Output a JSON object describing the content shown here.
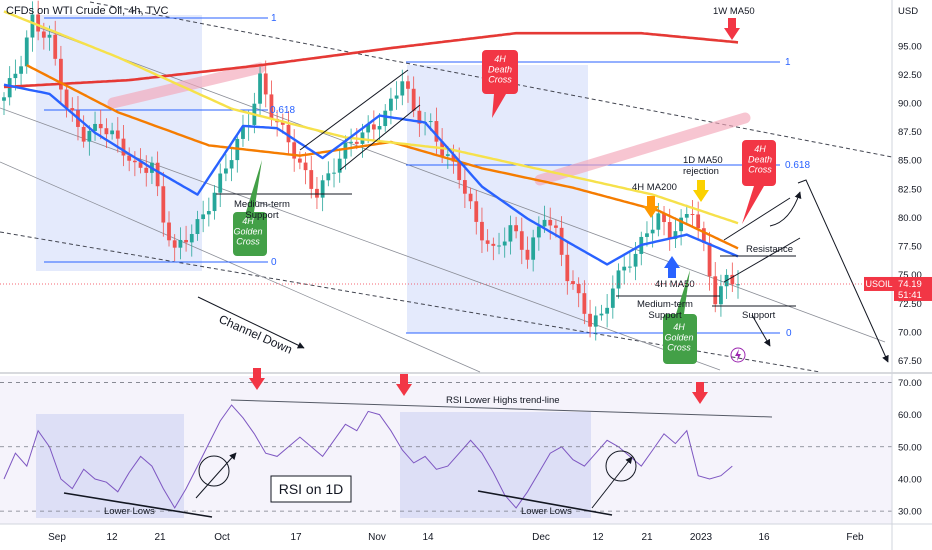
{
  "header": {
    "title": "CFDs on WTI Crude Oil, 4h, TVC",
    "currency": "USD"
  },
  "price_tag": {
    "symbol": "USOIL",
    "price": "74.19",
    "countdown": "51:41",
    "color": "#f23645"
  },
  "colors": {
    "ma_red": "#e53935",
    "ma_orange": "#f57c00",
    "ma_yellow": "#f6e14b",
    "ma_blue": "#2962ff",
    "up": "#26a69a",
    "down": "#ef5350",
    "box": "#dbe3fb",
    "rsi_bg": "#ede9f7"
  },
  "chart_data": [
    {
      "type": "candlestick",
      "title": "CFDs on WTI Crude Oil, 4h, TVC",
      "x_tick_labels": [
        "Sep",
        "12",
        "21",
        "Oct",
        "17",
        "Nov",
        "14",
        "Dec",
        "12",
        "21",
        "2023",
        "16",
        "Feb"
      ],
      "y_tick_labels": [
        "95.00",
        "92.50",
        "90.00",
        "87.50",
        "85.00",
        "82.50",
        "80.00",
        "77.50",
        "75.00",
        "72.50",
        "70.00",
        "67.50"
      ],
      "ylim": [
        66.5,
        99.0
      ],
      "last_price": 74.19,
      "close_series": [
        {
          "x": 0,
          "y": 90.2
        },
        {
          "x": 3,
          "y": 93.8
        },
        {
          "x": 5,
          "y": 97.6
        },
        {
          "x": 8,
          "y": 95.4
        },
        {
          "x": 11,
          "y": 89.4
        },
        {
          "x": 14,
          "y": 87.4
        },
        {
          "x": 17,
          "y": 88.2
        },
        {
          "x": 20,
          "y": 86.3
        },
        {
          "x": 23,
          "y": 84.4
        },
        {
          "x": 26,
          "y": 84.9
        },
        {
          "x": 28,
          "y": 79.7
        },
        {
          "x": 30,
          "y": 76.7
        },
        {
          "x": 32,
          "y": 78.2
        },
        {
          "x": 34,
          "y": 79.6
        },
        {
          "x": 37,
          "y": 82.2
        },
        {
          "x": 40,
          "y": 85.2
        },
        {
          "x": 43,
          "y": 88.6
        },
        {
          "x": 45,
          "y": 92.4
        },
        {
          "x": 47,
          "y": 89.2
        },
        {
          "x": 49,
          "y": 87.3
        },
        {
          "x": 52,
          "y": 84.5
        },
        {
          "x": 55,
          "y": 82.4
        },
        {
          "x": 58,
          "y": 84.3
        },
        {
          "x": 61,
          "y": 86.4
        },
        {
          "x": 64,
          "y": 87.9
        },
        {
          "x": 67,
          "y": 89.0
        },
        {
          "x": 70,
          "y": 91.8
        },
        {
          "x": 72,
          "y": 89.2
        },
        {
          "x": 75,
          "y": 88.2
        },
        {
          "x": 77,
          "y": 85.9
        },
        {
          "x": 80,
          "y": 83.4
        },
        {
          "x": 83,
          "y": 79.6
        },
        {
          "x": 86,
          "y": 77.2
        },
        {
          "x": 89,
          "y": 78.8
        },
        {
          "x": 92,
          "y": 76.6
        },
        {
          "x": 95,
          "y": 80.6
        },
        {
          "x": 97,
          "y": 78.6
        },
        {
          "x": 99,
          "y": 74.7
        },
        {
          "x": 101,
          "y": 72.7
        },
        {
          "x": 103,
          "y": 71.0
        },
        {
          "x": 105,
          "y": 71.6
        },
        {
          "x": 107,
          "y": 74.0
        },
        {
          "x": 109,
          "y": 75.4
        },
        {
          "x": 111,
          "y": 76.5
        },
        {
          "x": 113,
          "y": 79.0
        },
        {
          "x": 115,
          "y": 80.3
        },
        {
          "x": 117,
          "y": 78.6
        },
        {
          "x": 119,
          "y": 79.2
        },
        {
          "x": 121,
          "y": 80.6
        },
        {
          "x": 123,
          "y": 77.4
        },
        {
          "x": 125,
          "y": 73.2
        },
        {
          "x": 127,
          "y": 74.6
        },
        {
          "x": 129,
          "y": 74.2
        }
      ],
      "moving_averages": [
        {
          "name": "1W MA50",
          "points": [
            {
              "x": 0,
              "y": 91.4
            },
            {
              "x": 22,
              "y": 92.0
            },
            {
              "x": 45,
              "y": 93.3
            },
            {
              "x": 68,
              "y": 94.8
            },
            {
              "x": 90,
              "y": 96.1
            },
            {
              "x": 112,
              "y": 96.1
            },
            {
              "x": 129,
              "y": 95.3
            }
          ]
        },
        {
          "name": "4H MA200",
          "points": [
            {
              "x": 4,
              "y": 93.3
            },
            {
              "x": 20,
              "y": 89.2
            },
            {
              "x": 36,
              "y": 86.3
            },
            {
              "x": 52,
              "y": 85.4
            },
            {
              "x": 68,
              "y": 86.6
            },
            {
              "x": 84,
              "y": 84.3
            },
            {
              "x": 100,
              "y": 82.6
            },
            {
              "x": 115,
              "y": 80.6
            },
            {
              "x": 129,
              "y": 77.3
            }
          ]
        },
        {
          "name": "1D MA50",
          "points": [
            {
              "x": 0,
              "y": 98.0
            },
            {
              "x": 20,
              "y": 94.0
            },
            {
              "x": 40,
              "y": 89.5
            },
            {
              "x": 60,
              "y": 87.0
            },
            {
              "x": 78,
              "y": 86.0
            },
            {
              "x": 96,
              "y": 84.0
            },
            {
              "x": 114,
              "y": 82.0
            },
            {
              "x": 129,
              "y": 79.5
            }
          ]
        },
        {
          "name": "4H MA50",
          "points": [
            {
              "x": 0,
              "y": 91.6
            },
            {
              "x": 8,
              "y": 90.8
            },
            {
              "x": 16,
              "y": 87.4
            },
            {
              "x": 26,
              "y": 84.3
            },
            {
              "x": 34,
              "y": 82.0
            },
            {
              "x": 42,
              "y": 88.0
            },
            {
              "x": 48,
              "y": 87.8
            },
            {
              "x": 56,
              "y": 85.2
            },
            {
              "x": 66,
              "y": 88.9
            },
            {
              "x": 74,
              "y": 88.3
            },
            {
              "x": 84,
              "y": 82.7
            },
            {
              "x": 92,
              "y": 79.9
            },
            {
              "x": 100,
              "y": 77.6
            },
            {
              "x": 106,
              "y": 75.9
            },
            {
              "x": 112,
              "y": 77.6
            },
            {
              "x": 120,
              "y": 78.5
            },
            {
              "x": 129,
              "y": 76.6
            }
          ]
        }
      ],
      "annotations": {
        "ma50_weekly": "1W MA50",
        "ma200": "4H MA200",
        "ma50_4h": "4H MA50",
        "ma50_daily_rejection": "1D MA50\nrejection",
        "death_cross": "4H\nDeath\nCross",
        "golden_cross": "4H\nGolden\nCross",
        "medium_support": "Medium-term\nSupport",
        "resistance": "Resistance",
        "support": "Support",
        "channel": "Channel Down",
        "fib_one": "1",
        "fib_618": "0.618",
        "fib_zero": "0"
      }
    },
    {
      "type": "line",
      "title": "RSI on 1D",
      "y_tick_labels": [
        "70.00",
        "60.00",
        "50.00",
        "40.00",
        "30.00"
      ],
      "ylim": [
        26.0,
        72.0
      ],
      "series": [
        {
          "values": [
            {
              "x": 0,
              "y": 40
            },
            {
              "x": 2,
              "y": 48
            },
            {
              "x": 4,
              "y": 44
            },
            {
              "x": 6,
              "y": 55
            },
            {
              "x": 8,
              "y": 50
            },
            {
              "x": 10,
              "y": 40
            },
            {
              "x": 12,
              "y": 37
            },
            {
              "x": 14,
              "y": 43
            },
            {
              "x": 16,
              "y": 40
            },
            {
              "x": 18,
              "y": 39
            },
            {
              "x": 20,
              "y": 36
            },
            {
              "x": 22,
              "y": 42
            },
            {
              "x": 24,
              "y": 47
            },
            {
              "x": 26,
              "y": 44
            },
            {
              "x": 28,
              "y": 37
            },
            {
              "x": 30,
              "y": 31
            },
            {
              "x": 32,
              "y": 37
            },
            {
              "x": 34,
              "y": 44
            },
            {
              "x": 36,
              "y": 51
            },
            {
              "x": 38,
              "y": 58
            },
            {
              "x": 40,
              "y": 63
            },
            {
              "x": 42,
              "y": 59
            },
            {
              "x": 44,
              "y": 54
            },
            {
              "x": 46,
              "y": 48
            },
            {
              "x": 48,
              "y": 47
            },
            {
              "x": 50,
              "y": 50
            },
            {
              "x": 52,
              "y": 53
            },
            {
              "x": 54,
              "y": 50
            },
            {
              "x": 56,
              "y": 47
            },
            {
              "x": 58,
              "y": 52
            },
            {
              "x": 60,
              "y": 57
            },
            {
              "x": 62,
              "y": 55
            },
            {
              "x": 64,
              "y": 61
            },
            {
              "x": 66,
              "y": 60
            },
            {
              "x": 68,
              "y": 55
            },
            {
              "x": 70,
              "y": 49
            },
            {
              "x": 72,
              "y": 45
            },
            {
              "x": 74,
              "y": 47
            },
            {
              "x": 76,
              "y": 43
            },
            {
              "x": 78,
              "y": 44
            },
            {
              "x": 80,
              "y": 48
            },
            {
              "x": 82,
              "y": 52
            },
            {
              "x": 84,
              "y": 48
            },
            {
              "x": 86,
              "y": 42
            },
            {
              "x": 88,
              "y": 35
            },
            {
              "x": 90,
              "y": 31
            },
            {
              "x": 92,
              "y": 36
            },
            {
              "x": 94,
              "y": 42
            },
            {
              "x": 96,
              "y": 48
            },
            {
              "x": 98,
              "y": 50
            },
            {
              "x": 100,
              "y": 46
            },
            {
              "x": 102,
              "y": 44
            },
            {
              "x": 104,
              "y": 48
            },
            {
              "x": 106,
              "y": 52
            },
            {
              "x": 108,
              "y": 50
            },
            {
              "x": 110,
              "y": 47
            },
            {
              "x": 112,
              "y": 44
            },
            {
              "x": 114,
              "y": 49
            },
            {
              "x": 116,
              "y": 54
            },
            {
              "x": 118,
              "y": 51
            },
            {
              "x": 120,
              "y": 55
            },
            {
              "x": 122,
              "y": 41
            },
            {
              "x": 124,
              "y": 40
            },
            {
              "x": 126,
              "y": 41
            },
            {
              "x": 128,
              "y": 44
            }
          ]
        }
      ],
      "annotations": {
        "trend_line": "RSI Lower Highs trend-line",
        "lower_lows": "Lower Lows",
        "panel_label": "RSI on 1D"
      }
    }
  ]
}
